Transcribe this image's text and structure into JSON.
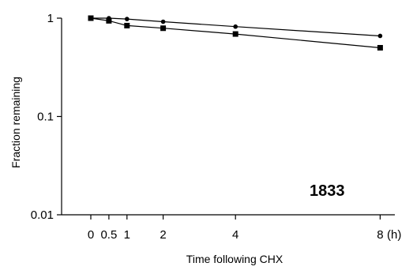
{
  "chart_data": {
    "type": "line",
    "title": "",
    "xlabel": "Time following CHX",
    "ylabel": "Fraction remaining",
    "x_unit_label": "(h)",
    "yscale": "log",
    "ylim": [
      0.01,
      1
    ],
    "xlim": [
      -1,
      8
    ],
    "grid": false,
    "legend": "none",
    "x_ticks": [
      {
        "value": 0,
        "label": "0"
      },
      {
        "value": 0.5,
        "label": "0.5"
      },
      {
        "value": 1,
        "label": "1"
      },
      {
        "value": 2,
        "label": "2"
      },
      {
        "value": 4,
        "label": "4"
      },
      {
        "value": 8,
        "label": "8"
      }
    ],
    "y_ticks": [
      {
        "value": 1,
        "label": "1"
      },
      {
        "value": 0.1,
        "label": "0.1"
      },
      {
        "value": 0.01,
        "label": "0.01"
      }
    ],
    "annotation": "1833",
    "series": [
      {
        "marker": "circle",
        "x": [
          0,
          0.5,
          1,
          2,
          4,
          8
        ],
        "y": [
          1.0,
          1.0,
          0.98,
          0.92,
          0.82,
          0.66
        ]
      },
      {
        "marker": "square",
        "x": [
          0,
          0.5,
          1,
          2,
          4,
          8
        ],
        "y": [
          1.0,
          0.94,
          0.84,
          0.79,
          0.69,
          0.5
        ]
      }
    ]
  }
}
